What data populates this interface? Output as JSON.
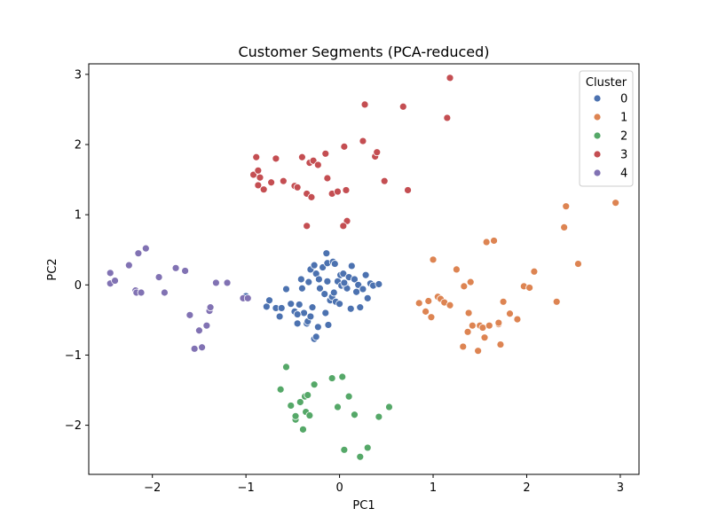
{
  "chart_data": {
    "type": "scatter",
    "title": "Customer Segments (PCA-reduced)",
    "xlabel": "PC1",
    "ylabel": "PC2",
    "xlim": [
      -2.68,
      3.2
    ],
    "ylim": [
      -2.7,
      3.15
    ],
    "xticks": [
      -2,
      -1,
      0,
      1,
      2,
      3
    ],
    "yticks": [
      -2,
      -1,
      0,
      1,
      2,
      3
    ],
    "xtick_labels": [
      "−2",
      "−1",
      "0",
      "1",
      "2",
      "3"
    ],
    "ytick_labels": [
      "−2",
      "−1",
      "0",
      "1",
      "2",
      "3"
    ],
    "grid": false,
    "legend": {
      "title": "Cluster",
      "position": "top-right"
    },
    "series": [
      {
        "name": "0",
        "color": "#4c72b0",
        "points": [
          [
            -1.0,
            -0.16
          ],
          [
            -0.78,
            -0.31
          ],
          [
            -0.75,
            -0.22
          ],
          [
            -0.68,
            -0.33
          ],
          [
            -0.64,
            -0.45
          ],
          [
            -0.62,
            -0.33
          ],
          [
            -0.57,
            -0.06
          ],
          [
            -0.52,
            -0.27
          ],
          [
            -0.48,
            -0.38
          ],
          [
            -0.45,
            -0.55
          ],
          [
            -0.43,
            -0.28
          ],
          [
            -0.41,
            0.08
          ],
          [
            -0.4,
            -0.05
          ],
          [
            -0.38,
            -0.4
          ],
          [
            -0.35,
            -0.55
          ],
          [
            -0.33,
            0.04
          ],
          [
            -0.31,
            0.22
          ],
          [
            -0.29,
            -0.32
          ],
          [
            -0.27,
            0.28
          ],
          [
            -0.25,
            0.16
          ],
          [
            -0.23,
            -0.6
          ],
          [
            -0.21,
            -0.05
          ],
          [
            -0.18,
            0.25
          ],
          [
            -0.16,
            -0.13
          ],
          [
            -0.15,
            -0.4
          ],
          [
            -0.13,
            0.31
          ],
          [
            -0.12,
            -0.57
          ],
          [
            -0.1,
            -0.22
          ],
          [
            -0.08,
            -0.17
          ],
          [
            -0.07,
            0.33
          ],
          [
            -0.06,
            -0.11
          ],
          [
            -0.04,
            -0.24
          ],
          [
            -0.02,
            0.05
          ],
          [
            0.0,
            -0.27
          ],
          [
            0.01,
            0.14
          ],
          [
            0.02,
            -0.01
          ],
          [
            0.04,
            0.16
          ],
          [
            0.06,
            0.0
          ],
          [
            0.08,
            -0.05
          ],
          [
            0.1,
            0.11
          ],
          [
            0.12,
            -0.34
          ],
          [
            0.13,
            0.27
          ],
          [
            0.16,
            0.08
          ],
          [
            0.18,
            -0.1
          ],
          [
            0.2,
            0.0
          ],
          [
            0.22,
            -0.32
          ],
          [
            0.25,
            -0.06
          ],
          [
            0.28,
            0.14
          ],
          [
            0.3,
            -0.19
          ],
          [
            0.33,
            0.02
          ],
          [
            0.36,
            -0.01
          ],
          [
            0.42,
            0.01
          ],
          [
            -0.45,
            -0.42
          ],
          [
            -0.34,
            -0.52
          ],
          [
            -0.27,
            -0.77
          ],
          [
            -0.05,
            0.3
          ],
          [
            -0.14,
            0.45
          ],
          [
            -0.25,
            -0.74
          ],
          [
            -0.31,
            -0.45
          ],
          [
            -0.22,
            0.08
          ],
          [
            -0.13,
            0.05
          ],
          [
            0.05,
            0.03
          ]
        ]
      },
      {
        "name": "1",
        "color": "#dd8452",
        "points": [
          [
            0.85,
            -0.26
          ],
          [
            0.92,
            -0.38
          ],
          [
            0.95,
            -0.23
          ],
          [
            0.98,
            -0.46
          ],
          [
            1.0,
            0.36
          ],
          [
            1.05,
            -0.17
          ],
          [
            1.08,
            -0.2
          ],
          [
            1.12,
            -0.25
          ],
          [
            1.18,
            -0.29
          ],
          [
            1.25,
            0.22
          ],
          [
            1.32,
            -0.88
          ],
          [
            1.33,
            -0.02
          ],
          [
            1.38,
            -0.4
          ],
          [
            1.4,
            0.04
          ],
          [
            1.42,
            -0.58
          ],
          [
            1.48,
            -0.94
          ],
          [
            1.5,
            -0.58
          ],
          [
            1.53,
            -0.61
          ],
          [
            1.55,
            -0.75
          ],
          [
            1.57,
            0.61
          ],
          [
            1.6,
            -0.58
          ],
          [
            1.65,
            0.63
          ],
          [
            1.7,
            -0.56
          ],
          [
            1.72,
            -0.85
          ],
          [
            1.75,
            -0.24
          ],
          [
            1.82,
            -0.41
          ],
          [
            1.9,
            -0.49
          ],
          [
            1.97,
            -0.02
          ],
          [
            2.03,
            -0.04
          ],
          [
            2.08,
            0.19
          ],
          [
            2.32,
            -0.24
          ],
          [
            2.4,
            0.82
          ],
          [
            2.42,
            1.12
          ],
          [
            2.55,
            0.3
          ],
          [
            2.95,
            1.17
          ],
          [
            1.37,
            -0.67
          ],
          [
            1.7,
            -0.54
          ]
        ]
      },
      {
        "name": "2",
        "color": "#55a868",
        "points": [
          [
            -0.63,
            -1.49
          ],
          [
            -0.57,
            -1.17
          ],
          [
            -0.52,
            -1.72
          ],
          [
            -0.47,
            -1.92
          ],
          [
            -0.47,
            -1.87
          ],
          [
            -0.42,
            -1.67
          ],
          [
            -0.39,
            -2.06
          ],
          [
            -0.37,
            -1.59
          ],
          [
            -0.36,
            -1.81
          ],
          [
            -0.34,
            -1.57
          ],
          [
            -0.32,
            -1.86
          ],
          [
            -0.27,
            -1.42
          ],
          [
            -0.08,
            -1.33
          ],
          [
            -0.02,
            -1.74
          ],
          [
            0.03,
            -1.31
          ],
          [
            0.05,
            -2.35
          ],
          [
            0.1,
            -1.59
          ],
          [
            0.16,
            -1.85
          ],
          [
            0.22,
            -2.45
          ],
          [
            0.3,
            -2.32
          ],
          [
            0.42,
            -1.88
          ],
          [
            0.53,
            -1.74
          ]
        ]
      },
      {
        "name": "3",
        "color": "#c44e52",
        "points": [
          [
            -0.92,
            1.57
          ],
          [
            -0.89,
            1.82
          ],
          [
            -0.87,
            1.63
          ],
          [
            -0.87,
            1.42
          ],
          [
            -0.85,
            1.53
          ],
          [
            -0.81,
            1.36
          ],
          [
            -0.73,
            1.46
          ],
          [
            -0.68,
            1.8
          ],
          [
            -0.6,
            1.48
          ],
          [
            -0.48,
            1.41
          ],
          [
            -0.45,
            1.39
          ],
          [
            -0.4,
            1.82
          ],
          [
            -0.35,
            1.3
          ],
          [
            -0.32,
            1.74
          ],
          [
            -0.3,
            1.25
          ],
          [
            -0.28,
            1.77
          ],
          [
            -0.23,
            1.71
          ],
          [
            -0.15,
            1.87
          ],
          [
            -0.13,
            1.52
          ],
          [
            -0.08,
            1.3
          ],
          [
            -0.02,
            1.33
          ],
          [
            0.05,
            1.97
          ],
          [
            0.07,
            1.35
          ],
          [
            0.08,
            0.91
          ],
          [
            0.25,
            2.05
          ],
          [
            0.27,
            2.57
          ],
          [
            0.38,
            1.83
          ],
          [
            0.4,
            1.89
          ],
          [
            0.48,
            1.48
          ],
          [
            0.68,
            2.54
          ],
          [
            0.73,
            1.35
          ],
          [
            1.15,
            2.38
          ],
          [
            1.18,
            2.95
          ],
          [
            0.04,
            0.84
          ],
          [
            -0.35,
            0.84
          ]
        ]
      },
      {
        "name": "4",
        "color": "#8172b3",
        "points": [
          [
            -2.45,
            0.17
          ],
          [
            -2.45,
            0.02
          ],
          [
            -2.4,
            0.06
          ],
          [
            -2.25,
            0.28
          ],
          [
            -2.18,
            -0.08
          ],
          [
            -2.17,
            -0.11
          ],
          [
            -2.15,
            0.45
          ],
          [
            -2.12,
            -0.11
          ],
          [
            -2.07,
            0.52
          ],
          [
            -1.93,
            0.11
          ],
          [
            -1.87,
            -0.11
          ],
          [
            -1.75,
            0.24
          ],
          [
            -1.65,
            0.2
          ],
          [
            -1.6,
            -0.43
          ],
          [
            -1.55,
            -0.91
          ],
          [
            -1.5,
            -0.65
          ],
          [
            -1.47,
            -0.89
          ],
          [
            -1.42,
            -0.58
          ],
          [
            -1.39,
            -0.37
          ],
          [
            -1.38,
            -0.32
          ],
          [
            -1.32,
            0.03
          ],
          [
            -1.2,
            0.03
          ],
          [
            -1.03,
            -0.19
          ],
          [
            -0.98,
            -0.19
          ]
        ]
      }
    ]
  }
}
